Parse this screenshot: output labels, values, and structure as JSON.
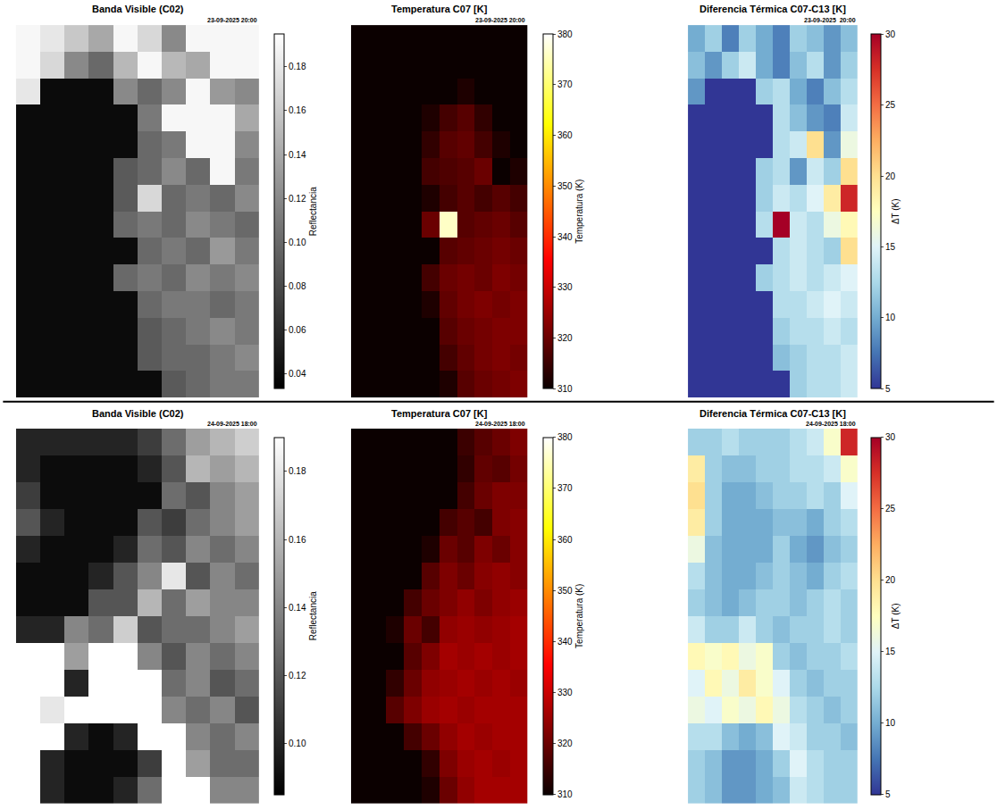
{
  "chart_data": [
    {
      "type": "heatmap",
      "title": "Banda Visible (C02)",
      "timestamp": "23-09-2025 20:00",
      "color": "gray",
      "tick_labels": false,
      "colorbar": {
        "title": "Reflectancia",
        "range": [
          0.033,
          0.195
        ],
        "ticks": [
          0.04,
          0.06,
          0.08,
          {
            "value": 0.1,
            "label": "0.10"
          },
          0.12,
          0.14,
          0.16,
          0.18
        ]
      },
      "z": [
        [
          0.19,
          0.18,
          0.16,
          0.14,
          0.19,
          0.17,
          0.12,
          0.19,
          0.19,
          0.19
        ],
        [
          0.19,
          0.17,
          0.12,
          0.1,
          0.15,
          0.19,
          0.15,
          0.14,
          0.19,
          0.19
        ],
        [
          0.18,
          0.04,
          0.04,
          0.04,
          0.12,
          0.1,
          0.12,
          0.19,
          0.13,
          0.12
        ],
        [
          0.04,
          0.04,
          0.04,
          0.04,
          0.04,
          0.11,
          0.19,
          0.19,
          0.19,
          0.14
        ],
        [
          0.04,
          0.04,
          0.04,
          0.04,
          0.04,
          0.1,
          0.11,
          0.19,
          0.19,
          0.12
        ],
        [
          0.04,
          0.04,
          0.04,
          0.04,
          0.09,
          0.1,
          0.12,
          0.1,
          0.19,
          0.11
        ],
        [
          0.04,
          0.04,
          0.04,
          0.04,
          0.09,
          0.17,
          0.1,
          0.11,
          0.1,
          0.12
        ],
        [
          0.04,
          0.04,
          0.04,
          0.04,
          0.1,
          0.11,
          0.1,
          0.12,
          0.11,
          0.1
        ],
        [
          0.04,
          0.04,
          0.04,
          0.04,
          0.04,
          0.1,
          0.11,
          0.1,
          0.13,
          0.11
        ],
        [
          0.04,
          0.04,
          0.04,
          0.04,
          0.1,
          0.11,
          0.1,
          0.12,
          0.11,
          0.12
        ],
        [
          0.04,
          0.04,
          0.04,
          0.04,
          0.04,
          0.1,
          0.11,
          0.11,
          0.1,
          0.11
        ],
        [
          0.04,
          0.04,
          0.04,
          0.04,
          0.04,
          0.09,
          0.1,
          0.11,
          0.12,
          0.11
        ],
        [
          0.04,
          0.04,
          0.04,
          0.04,
          0.04,
          0.09,
          0.1,
          0.1,
          0.11,
          0.12
        ],
        [
          0.04,
          0.04,
          0.04,
          0.04,
          0.04,
          0.04,
          0.09,
          0.1,
          0.11,
          0.11
        ]
      ]
    },
    {
      "type": "heatmap",
      "title": "Temperatura C07 [K]",
      "timestamp": "23-09-2025 20:00",
      "color": "hot",
      "tick_labels": false,
      "colorbar": {
        "title": "Temperatura (K)",
        "range": [
          310,
          380
        ],
        "ticks": [
          310,
          320,
          330,
          340,
          350,
          360,
          370,
          380
        ]
      },
      "z": [
        [
          305,
          305,
          305,
          305,
          305,
          305,
          305,
          305,
          305,
          305
        ],
        [
          305,
          305,
          305,
          305,
          305,
          305,
          305,
          305,
          305,
          305
        ],
        [
          305,
          305,
          305,
          305,
          305,
          305,
          312,
          310,
          305,
          305
        ],
        [
          305,
          305,
          305,
          305,
          312,
          316,
          318,
          314,
          305,
          305
        ],
        [
          305,
          305,
          305,
          305,
          314,
          318,
          319,
          316,
          312,
          305
        ],
        [
          305,
          305,
          305,
          305,
          316,
          317,
          318,
          320,
          310,
          312
        ],
        [
          305,
          305,
          305,
          305,
          312,
          316,
          318,
          316,
          318,
          316
        ],
        [
          305,
          305,
          305,
          305,
          320,
          376,
          318,
          319,
          320,
          318
        ],
        [
          305,
          305,
          305,
          305,
          310,
          318,
          319,
          320,
          321,
          320
        ],
        [
          305,
          305,
          305,
          305,
          316,
          320,
          321,
          320,
          322,
          321
        ],
        [
          305,
          305,
          305,
          305,
          312,
          319,
          321,
          322,
          321,
          322
        ],
        [
          305,
          305,
          305,
          305,
          310,
          318,
          320,
          321,
          322,
          322
        ],
        [
          305,
          305,
          305,
          305,
          308,
          316,
          319,
          321,
          322,
          321
        ],
        [
          305,
          305,
          305,
          305,
          306,
          312,
          318,
          320,
          321,
          322
        ]
      ]
    },
    {
      "type": "heatmap",
      "title": "Diferencia Térmica C07-C13 [K]",
      "timestamp": "23-09-2025  20:00",
      "color": "RdYlBu_r",
      "tick_labels": false,
      "colorbar": {
        "title": "ΔT (K)",
        "range": [
          5,
          30
        ],
        "ticks": [
          5,
          10,
          15,
          20,
          25,
          30
        ]
      },
      "z": [
        [
          10,
          12,
          8,
          12,
          10,
          8,
          12,
          11,
          9,
          11
        ],
        [
          11,
          9,
          12,
          14,
          10,
          8,
          11,
          13,
          9,
          12
        ],
        [
          9,
          5,
          5,
          5,
          12,
          13,
          10,
          8,
          11,
          13
        ],
        [
          5,
          5,
          5,
          5,
          5,
          13,
          11,
          9,
          8,
          14
        ],
        [
          5,
          5,
          5,
          5,
          5,
          13,
          14,
          20,
          9,
          16
        ],
        [
          5,
          5,
          5,
          5,
          12,
          13,
          9,
          14,
          12,
          20
        ],
        [
          5,
          5,
          5,
          5,
          12,
          14,
          13,
          15,
          19,
          28
        ],
        [
          5,
          5,
          5,
          5,
          13,
          30,
          14,
          13,
          16,
          18
        ],
        [
          5,
          5,
          5,
          5,
          5,
          13,
          14,
          13,
          12,
          20
        ],
        [
          5,
          5,
          5,
          5,
          12,
          13,
          14,
          13,
          14,
          15
        ],
        [
          5,
          5,
          5,
          5,
          5,
          13,
          13,
          14,
          15,
          14
        ],
        [
          5,
          5,
          5,
          5,
          5,
          12,
          13,
          13,
          14,
          13
        ],
        [
          5,
          5,
          5,
          5,
          5,
          11,
          12,
          13,
          13,
          14
        ],
        [
          5,
          5,
          5,
          5,
          5,
          5,
          12,
          13,
          13,
          14
        ]
      ]
    },
    {
      "type": "heatmap",
      "title": "Banda Visible (C02)",
      "timestamp": "24-09-2025 18:00",
      "color": "gray",
      "tick_labels": false,
      "colorbar": {
        "title": "Reflectancia",
        "range": [
          0.085,
          0.19
        ],
        "ticks": [
          {
            "value": 0.1,
            "label": "0.10"
          },
          0.12,
          0.14,
          0.16,
          0.18
        ]
      },
      "z": [
        [
          0.1,
          0.1,
          0.1,
          0.1,
          0.1,
          0.11,
          0.13,
          0.15,
          0.16,
          0.17
        ],
        [
          0.1,
          0.09,
          0.09,
          0.09,
          0.09,
          0.1,
          0.12,
          0.16,
          0.15,
          0.16
        ],
        [
          0.11,
          0.09,
          0.09,
          0.09,
          0.09,
          0.09,
          0.13,
          0.12,
          0.14,
          0.15
        ],
        [
          0.12,
          0.1,
          0.09,
          0.09,
          0.09,
          0.12,
          0.11,
          0.13,
          0.14,
          0.15
        ],
        [
          0.1,
          0.09,
          0.09,
          0.09,
          0.1,
          0.13,
          0.12,
          0.14,
          0.13,
          0.14
        ],
        [
          0.09,
          0.09,
          0.09,
          0.1,
          0.12,
          0.14,
          0.18,
          0.12,
          0.14,
          0.13
        ],
        [
          0.09,
          0.09,
          0.09,
          0.12,
          0.12,
          0.16,
          0.13,
          0.15,
          0.14,
          0.14
        ],
        [
          0.1,
          0.1,
          0.14,
          0.13,
          0.17,
          0.12,
          0.13,
          0.13,
          0.14,
          0.15
        ],
        [
          0.19,
          0.19,
          0.15,
          0.19,
          0.19,
          0.14,
          0.12,
          0.14,
          0.13,
          0.14
        ],
        [
          0.19,
          0.19,
          0.1,
          0.19,
          0.19,
          0.19,
          0.13,
          0.14,
          0.12,
          0.13
        ],
        [
          0.19,
          0.18,
          0.19,
          0.19,
          0.19,
          0.19,
          0.14,
          0.13,
          0.14,
          0.12
        ],
        [
          0.19,
          0.19,
          0.1,
          0.09,
          0.1,
          0.19,
          0.19,
          0.14,
          0.13,
          0.14
        ],
        [
          0.19,
          0.1,
          0.09,
          0.09,
          0.09,
          0.11,
          0.19,
          0.15,
          0.13,
          0.13
        ],
        [
          0.19,
          0.1,
          0.09,
          0.09,
          0.1,
          0.13,
          0.19,
          0.19,
          0.14,
          0.14
        ]
      ]
    },
    {
      "type": "heatmap",
      "title": "Temperatura C07 [K]",
      "timestamp": "24-09-2025 18:00",
      "color": "hot",
      "tick_labels": false,
      "colorbar": {
        "title": "Temperatura (K)",
        "range": [
          310,
          380
        ],
        "ticks": [
          310,
          320,
          330,
          340,
          350,
          360,
          370,
          380
        ]
      },
      "z": [
        [
          305,
          305,
          305,
          305,
          305,
          305,
          315,
          318,
          320,
          322
        ],
        [
          305,
          305,
          305,
          305,
          305,
          305,
          314,
          319,
          318,
          321
        ],
        [
          305,
          305,
          305,
          305,
          305,
          308,
          316,
          320,
          322,
          322
        ],
        [
          305,
          305,
          305,
          305,
          305,
          316,
          318,
          316,
          322,
          323
        ],
        [
          305,
          305,
          305,
          305,
          312,
          320,
          318,
          322,
          320,
          323
        ],
        [
          305,
          305,
          305,
          310,
          318,
          322,
          320,
          323,
          324,
          323
        ],
        [
          305,
          305,
          305,
          316,
          320,
          322,
          324,
          322,
          324,
          325
        ],
        [
          305,
          305,
          312,
          320,
          316,
          324,
          325,
          324,
          325,
          326
        ],
        [
          305,
          305,
          310,
          318,
          322,
          326,
          325,
          326,
          325,
          326
        ],
        [
          305,
          305,
          314,
          320,
          324,
          325,
          326,
          325,
          326,
          325
        ],
        [
          305,
          305,
          318,
          322,
          325,
          326,
          325,
          326,
          326,
          326
        ],
        [
          305,
          305,
          305,
          316,
          320,
          324,
          326,
          325,
          326,
          326
        ],
        [
          305,
          305,
          305,
          305,
          314,
          322,
          325,
          326,
          325,
          326
        ],
        [
          305,
          305,
          305,
          305,
          312,
          320,
          324,
          326,
          326,
          326
        ]
      ]
    },
    {
      "type": "heatmap",
      "title": "Diferencia Térmica C07-C13 [K]",
      "timestamp": "24-09-2025 18:00",
      "color": "RdYlBu_r",
      "tick_labels": false,
      "colorbar": {
        "title": "ΔT (K)",
        "range": [
          5,
          30
        ],
        "ticks": [
          5,
          10,
          15,
          20,
          25,
          30
        ]
      },
      "z": [
        [
          12,
          12,
          13,
          12,
          12,
          12,
          13,
          14,
          17,
          28
        ],
        [
          19,
          12,
          11,
          11,
          12,
          12,
          13,
          13,
          14,
          17
        ],
        [
          20,
          12,
          10,
          10,
          11,
          12,
          12,
          13,
          12,
          15
        ],
        [
          19,
          12,
          10,
          10,
          10,
          11,
          11,
          10,
          12,
          13
        ],
        [
          16,
          11,
          10,
          10,
          10,
          12,
          10,
          9,
          11,
          12
        ],
        [
          13,
          11,
          10,
          10,
          11,
          12,
          11,
          10,
          12,
          13
        ],
        [
          12,
          11,
          10,
          11,
          12,
          12,
          11,
          12,
          13,
          12
        ],
        [
          14,
          12,
          12,
          14,
          12,
          11,
          12,
          12,
          13,
          12
        ],
        [
          18,
          17,
          18,
          16,
          17,
          12,
          11,
          12,
          12,
          13
        ],
        [
          15,
          18,
          16,
          19,
          17,
          15,
          12,
          11,
          12,
          12
        ],
        [
          16,
          15,
          17,
          16,
          18,
          16,
          13,
          12,
          11,
          12
        ],
        [
          13,
          13,
          11,
          10,
          11,
          15,
          14,
          12,
          12,
          11
        ],
        [
          12,
          11,
          9,
          9,
          10,
          12,
          15,
          13,
          12,
          12
        ],
        [
          12,
          11,
          9,
          9,
          10,
          11,
          14,
          13,
          12,
          12
        ]
      ]
    }
  ]
}
